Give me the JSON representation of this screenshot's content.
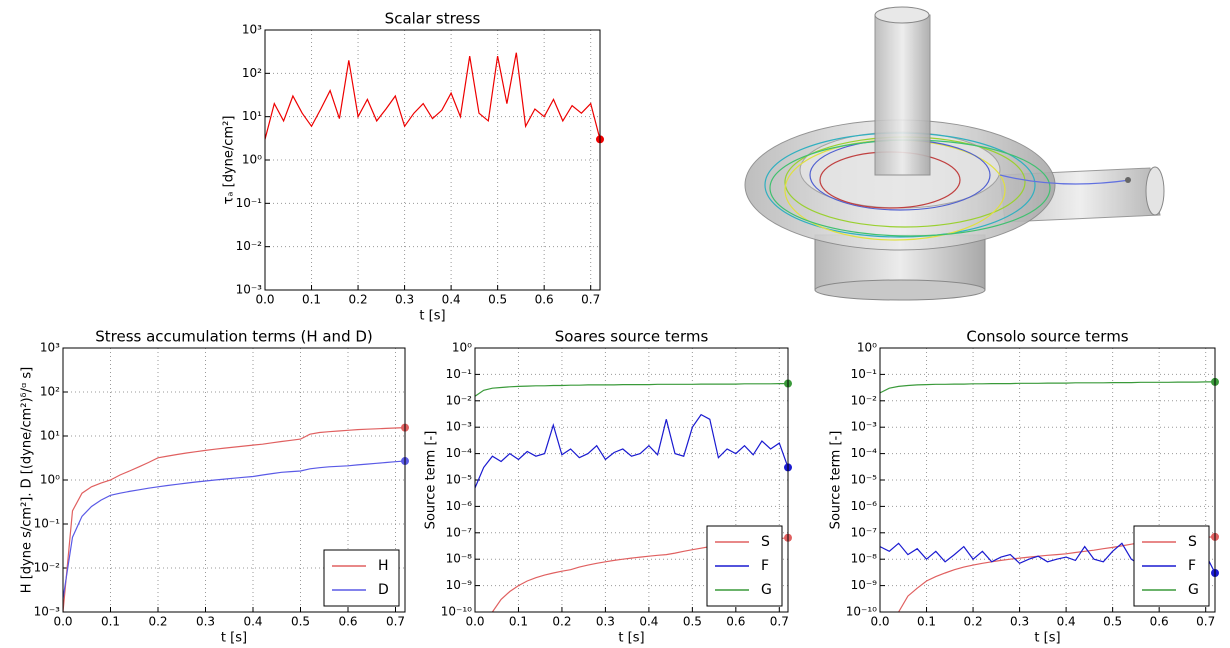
{
  "chart_data": [
    {
      "type": "line",
      "title": "Scalar stress",
      "x_label": "t [s]",
      "y_label": "τₐ [dyne/cm²]",
      "x": [
        0,
        0.02,
        0.04,
        0.06,
        0.08,
        0.1,
        0.12,
        0.14,
        0.16,
        0.18,
        0.2,
        0.22,
        0.24,
        0.26,
        0.28,
        0.3,
        0.32,
        0.34,
        0.36,
        0.38,
        0.4,
        0.42,
        0.44,
        0.46,
        0.48,
        0.5,
        0.52,
        0.54,
        0.56,
        0.58,
        0.6,
        0.62,
        0.64,
        0.66,
        0.68,
        0.7,
        0.72
      ],
      "values": [
        3,
        20,
        8,
        30,
        12,
        6,
        15,
        40,
        9,
        200,
        10,
        25,
        8,
        15,
        30,
        6,
        12,
        20,
        9,
        14,
        35,
        10,
        250,
        12,
        8,
        250,
        20,
        300,
        6,
        15,
        10,
        25,
        8,
        18,
        12,
        20,
        3
      ],
      "color": "#ee0000",
      "log_y": true,
      "grid": true,
      "xlim": [
        0,
        0.72
      ],
      "ylim": [
        0.001,
        1000
      ],
      "xticks": [
        {
          "value": 0,
          "label": "0.0"
        },
        0.1,
        0.2,
        0.3,
        0.4,
        0.5,
        0.6,
        0.7
      ],
      "yticks": [
        {
          "value": 0.001,
          "label": "10⁻³"
        },
        {
          "value": 0.01,
          "label": "10⁻²"
        },
        {
          "value": 0.1,
          "label": "10⁻¹"
        },
        {
          "value": 1,
          "label": "10⁰"
        },
        {
          "value": 10,
          "label": "10¹"
        },
        {
          "value": 100,
          "label": "10²"
        },
        {
          "value": 1000,
          "label": "10³"
        }
      ]
    },
    {
      "type": "line",
      "title": "Stress accumulation terms (H and D)",
      "x_label": "t [s]",
      "y_label": "H [dyne s/cm²]. D [(dyne/cm²)ᵟ/ᵅ s]",
      "x": [
        0,
        0.02,
        0.04,
        0.06,
        0.08,
        0.1,
        0.12,
        0.14,
        0.16,
        0.18,
        0.2,
        0.22,
        0.24,
        0.26,
        0.28,
        0.3,
        0.32,
        0.34,
        0.36,
        0.38,
        0.4,
        0.42,
        0.44,
        0.46,
        0.48,
        0.5,
        0.52,
        0.54,
        0.56,
        0.58,
        0.6,
        0.62,
        0.64,
        0.66,
        0.68,
        0.7,
        0.72
      ],
      "series": [
        {
          "name": "H",
          "color": "#e06060",
          "values": [
            0.001,
            0.2,
            0.5,
            0.7,
            0.85,
            1,
            1.3,
            1.6,
            2,
            2.5,
            3.2,
            3.5,
            3.8,
            4.1,
            4.4,
            4.7,
            5,
            5.3,
            5.6,
            5.9,
            6.2,
            6.5,
            7,
            7.5,
            8,
            8.5,
            11,
            12,
            12.5,
            13,
            13.5,
            14,
            14.3,
            14.6,
            14.9,
            15.2,
            15.5
          ]
        },
        {
          "name": "D",
          "color": "#5a5ae6",
          "values": [
            0.002,
            0.05,
            0.15,
            0.25,
            0.35,
            0.45,
            0.5,
            0.55,
            0.6,
            0.65,
            0.7,
            0.75,
            0.8,
            0.85,
            0.9,
            0.95,
            1,
            1.05,
            1.1,
            1.15,
            1.2,
            1.3,
            1.4,
            1.5,
            1.55,
            1.6,
            1.8,
            1.9,
            2,
            2.05,
            2.1,
            2.2,
            2.3,
            2.4,
            2.5,
            2.6,
            2.7
          ]
        }
      ],
      "log_y": true,
      "grid": true,
      "legend": "lower right",
      "xlim": [
        0,
        0.72
      ],
      "ylim": [
        0.001,
        1000
      ],
      "xticks": [
        {
          "value": 0,
          "label": "0.0"
        },
        0.1,
        0.2,
        0.3,
        0.4,
        0.5,
        0.6,
        0.7
      ],
      "yticks": [
        {
          "value": 0.001,
          "label": "10⁻³"
        },
        {
          "value": 0.01,
          "label": "10⁻²"
        },
        {
          "value": 0.1,
          "label": "10⁻¹"
        },
        {
          "value": 1,
          "label": "10⁰"
        },
        {
          "value": 10,
          "label": "10¹"
        },
        {
          "value": 100,
          "label": "10²"
        },
        {
          "value": 1000,
          "label": "10³"
        }
      ]
    },
    {
      "type": "line",
      "title": "Soares source terms",
      "x_label": "t [s]",
      "y_label": "Source term [-]",
      "x": [
        0,
        0.02,
        0.04,
        0.06,
        0.08,
        0.1,
        0.12,
        0.14,
        0.16,
        0.18,
        0.2,
        0.22,
        0.24,
        0.26,
        0.28,
        0.3,
        0.32,
        0.34,
        0.36,
        0.38,
        0.4,
        0.42,
        0.44,
        0.46,
        0.48,
        0.5,
        0.52,
        0.54,
        0.56,
        0.58,
        0.6,
        0.62,
        0.64,
        0.66,
        0.68,
        0.7,
        0.72
      ],
      "series": [
        {
          "name": "S",
          "color": "#e06060",
          "values": [
            null,
            null,
            1e-10,
            3e-10,
            6e-10,
            1e-09,
            1.5e-09,
            2e-09,
            2.5e-09,
            3e-09,
            3.5e-09,
            4e-09,
            5e-09,
            6e-09,
            7e-09,
            8e-09,
            9e-09,
            1e-08,
            1.1e-08,
            1.2e-08,
            1.3e-08,
            1.4e-08,
            1.5e-08,
            1.7e-08,
            2e-08,
            2.3e-08,
            2.6e-08,
            3e-08,
            3.3e-08,
            3.6e-08,
            4e-08,
            4.3e-08,
            4.6e-08,
            5e-08,
            5.5e-08,
            6e-08,
            6.5e-08
          ]
        },
        {
          "name": "F",
          "color": "#1a1ad0",
          "values": [
            5e-06,
            3e-05,
            8e-05,
            5e-05,
            0.0001,
            6e-05,
            0.00012,
            8e-05,
            0.0001,
            0.0012,
            9e-05,
            0.00015,
            7e-05,
            0.0001,
            0.0002,
            6e-05,
            0.00011,
            0.00015,
            8e-05,
            0.0001,
            0.0002,
            9e-05,
            0.002,
            0.0001,
            8e-05,
            0.001,
            0.003,
            0.002,
            7e-05,
            0.00015,
            0.0001,
            0.0002,
            9e-05,
            0.0003,
            0.00015,
            0.00025,
            3e-05
          ]
        },
        {
          "name": "G",
          "color": "#3a9a3a",
          "values": [
            0.015,
            0.025,
            0.03,
            0.032,
            0.034,
            0.035,
            0.036,
            0.037,
            0.037,
            0.038,
            0.038,
            0.039,
            0.039,
            0.04,
            0.04,
            0.04,
            0.04,
            0.041,
            0.041,
            0.041,
            0.041,
            0.042,
            0.042,
            0.042,
            0.042,
            0.042,
            0.043,
            0.043,
            0.043,
            0.043,
            0.043,
            0.044,
            0.044,
            0.044,
            0.044,
            0.045,
            0.045
          ]
        }
      ],
      "log_y": true,
      "grid": true,
      "legend": "lower right",
      "xlim": [
        0,
        0.72
      ],
      "ylim": [
        1e-10,
        1
      ],
      "xticks": [
        {
          "value": 0,
          "label": "0.0"
        },
        0.1,
        0.2,
        0.3,
        0.4,
        0.5,
        0.6,
        0.7
      ],
      "yticks": [
        {
          "value": 1e-10,
          "label": "10⁻¹⁰"
        },
        {
          "value": 1e-09,
          "label": "10⁻⁹"
        },
        {
          "value": 1e-08,
          "label": "10⁻⁸"
        },
        {
          "value": 1e-07,
          "label": "10⁻⁷"
        },
        {
          "value": 1e-06,
          "label": "10⁻⁶"
        },
        {
          "value": 1e-05,
          "label": "10⁻⁵"
        },
        {
          "value": 0.0001,
          "label": "10⁻⁴"
        },
        {
          "value": 0.001,
          "label": "10⁻³"
        },
        {
          "value": 0.01,
          "label": "10⁻²"
        },
        {
          "value": 0.1,
          "label": "10⁻¹"
        },
        {
          "value": 1,
          "label": "10⁰"
        }
      ]
    },
    {
      "type": "line",
      "title": "Consolo source terms",
      "x_label": "t [s]",
      "y_label": "Source term [-]",
      "x": [
        0,
        0.02,
        0.04,
        0.06,
        0.08,
        0.1,
        0.12,
        0.14,
        0.16,
        0.18,
        0.2,
        0.22,
        0.24,
        0.26,
        0.28,
        0.3,
        0.32,
        0.34,
        0.36,
        0.38,
        0.4,
        0.42,
        0.44,
        0.46,
        0.48,
        0.5,
        0.52,
        0.54,
        0.56,
        0.58,
        0.6,
        0.62,
        0.64,
        0.66,
        0.68,
        0.7,
        0.72
      ],
      "series": [
        {
          "name": "S",
          "color": "#e06060",
          "values": [
            null,
            null,
            1e-10,
            4e-10,
            8e-10,
            1.5e-09,
            2.2e-09,
            3e-09,
            4e-09,
            5e-09,
            6e-09,
            7e-09,
            8e-09,
            9e-09,
            1e-08,
            1.1e-08,
            1.2e-08,
            1.3e-08,
            1.4e-08,
            1.5e-08,
            1.6e-08,
            1.8e-08,
            2e-08,
            2.2e-08,
            2.5e-08,
            2.8e-08,
            3.2e-08,
            3.7e-08,
            4.2e-08,
            4.6e-08,
            5e-08,
            5.3e-08,
            5.6e-08,
            6e-08,
            6.4e-08,
            6.8e-08,
            7e-08
          ]
        },
        {
          "name": "F",
          "color": "#1a1ad0",
          "values": [
            3e-08,
            2e-08,
            4e-08,
            1.5e-08,
            2.5e-08,
            1e-08,
            2e-08,
            8e-09,
            1.5e-08,
            3e-08,
            1e-08,
            2e-08,
            8e-09,
            1.2e-08,
            1.5e-08,
            7e-09,
            1e-08,
            1.3e-08,
            8e-09,
            1e-08,
            1.2e-08,
            9e-09,
            3e-08,
            1e-08,
            8e-09,
            2e-08,
            4e-08,
            1e-08,
            6e-09,
            1e-08,
            8e-09,
            1.2e-08,
            2e-08,
            1e-08,
            2e-08,
            1.5e-08,
            3e-09
          ]
        },
        {
          "name": "G",
          "color": "#3a9a3a",
          "values": [
            0.02,
            0.03,
            0.035,
            0.038,
            0.04,
            0.041,
            0.042,
            0.042,
            0.043,
            0.043,
            0.044,
            0.044,
            0.045,
            0.045,
            0.045,
            0.046,
            0.046,
            0.046,
            0.047,
            0.047,
            0.047,
            0.048,
            0.048,
            0.048,
            0.048,
            0.049,
            0.049,
            0.049,
            0.05,
            0.05,
            0.05,
            0.05,
            0.051,
            0.051,
            0.051,
            0.052,
            0.052
          ]
        }
      ],
      "log_y": true,
      "grid": true,
      "legend": "lower right",
      "xlim": [
        0,
        0.72
      ],
      "ylim": [
        1e-10,
        1
      ],
      "xticks": [
        {
          "value": 0,
          "label": "0.0"
        },
        0.1,
        0.2,
        0.3,
        0.4,
        0.5,
        0.6,
        0.7
      ],
      "yticks": [
        {
          "value": 1e-10,
          "label": "10⁻¹⁰"
        },
        {
          "value": 1e-09,
          "label": "10⁻⁹"
        },
        {
          "value": 1e-08,
          "label": "10⁻⁸"
        },
        {
          "value": 1e-07,
          "label": "10⁻⁷"
        },
        {
          "value": 1e-06,
          "label": "10⁻⁶"
        },
        {
          "value": 1e-05,
          "label": "10⁻⁵"
        },
        {
          "value": 0.0001,
          "label": "10⁻⁴"
        },
        {
          "value": 0.001,
          "label": "10⁻³"
        },
        {
          "value": 0.01,
          "label": "10⁻²"
        },
        {
          "value": 0.1,
          "label": "10⁻¹"
        },
        {
          "value": 1,
          "label": "10⁰"
        }
      ]
    }
  ]
}
